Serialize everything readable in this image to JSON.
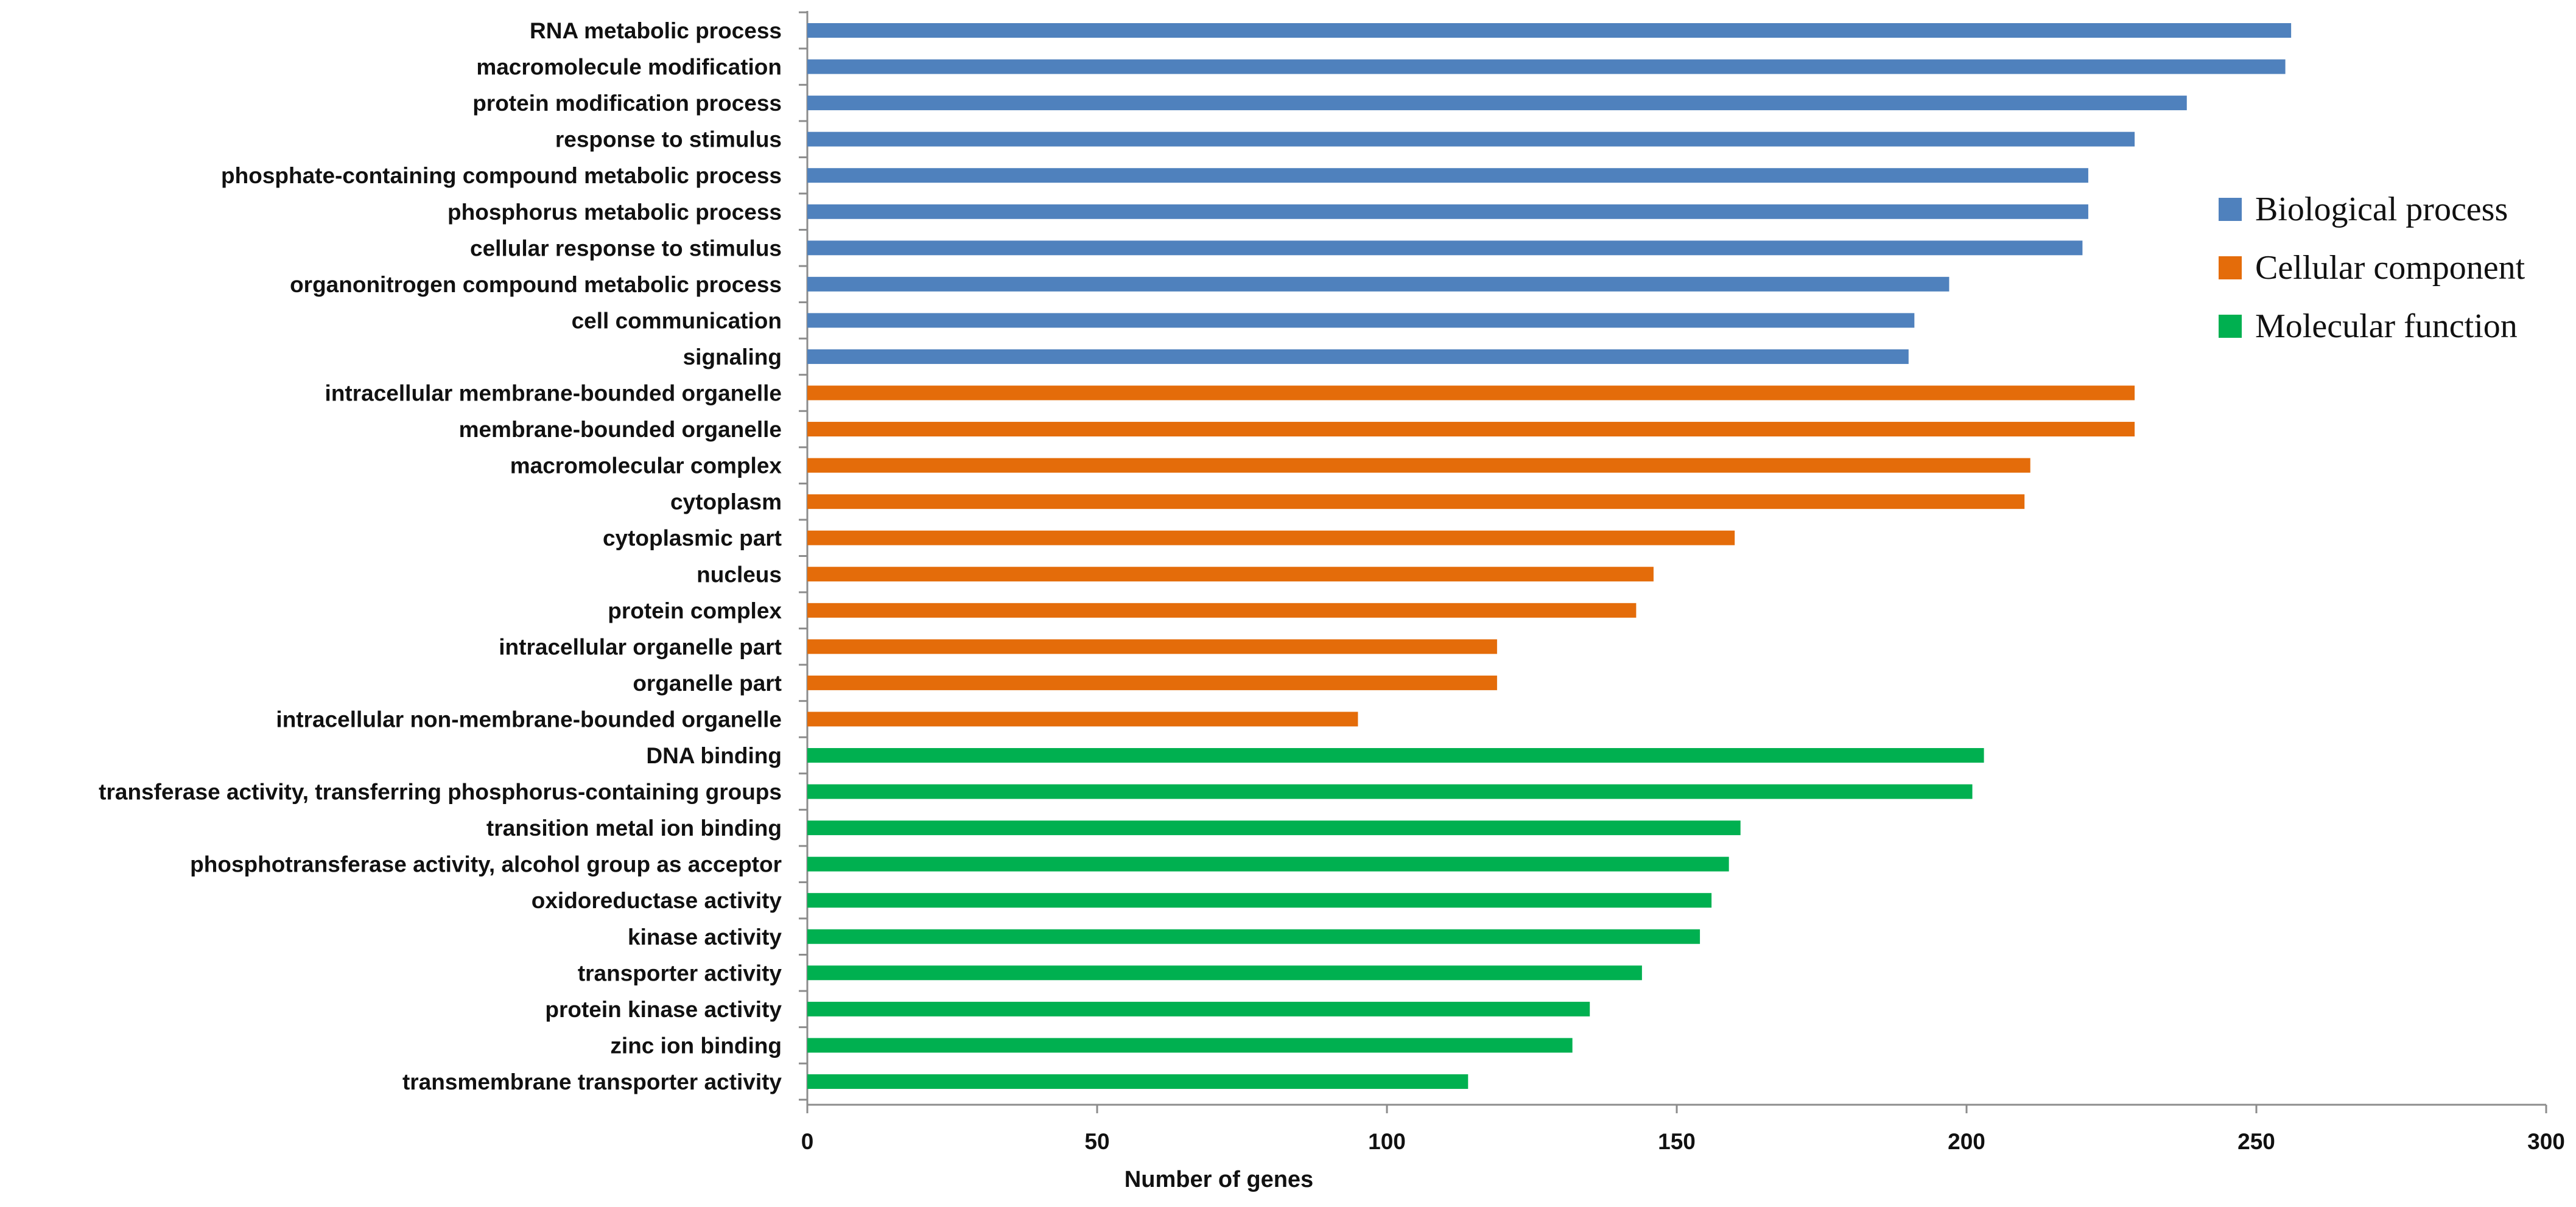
{
  "chart_data": {
    "type": "bar",
    "orientation": "horizontal",
    "title": "",
    "xlabel": "Number of genes",
    "ylabel": "",
    "xlim": [
      0,
      300
    ],
    "xticks": [
      0,
      50,
      100,
      150,
      200,
      250,
      300
    ],
    "grid": false,
    "legend_position": "right",
    "series": [
      {
        "name": "Biological process",
        "color": "#4f81bd",
        "categories": [
          "RNA metabolic process",
          "macromolecule modification",
          "protein modification process",
          "response to stimulus",
          "phosphate-containing compound metabolic process",
          "phosphorus metabolic process",
          "cellular response to stimulus",
          "organonitrogen compound metabolic process",
          "cell communication",
          "signaling"
        ],
        "values": [
          256,
          255,
          238,
          229,
          221,
          221,
          220,
          197,
          191,
          190
        ]
      },
      {
        "name": "Cellular component",
        "color": "#e46c0a",
        "categories": [
          "intracellular membrane-bounded organelle",
          "membrane-bounded organelle",
          "macromolecular complex",
          "cytoplasm",
          "cytoplasmic part",
          "nucleus",
          "protein complex",
          "intracellular organelle part",
          "organelle part",
          "intracellular non-membrane-bounded organelle"
        ],
        "values": [
          229,
          229,
          211,
          210,
          160,
          146,
          143,
          119,
          119,
          95
        ]
      },
      {
        "name": "Molecular function",
        "color": "#00b050",
        "categories": [
          "DNA binding",
          "transferase activity, transferring phosphorus-containing groups",
          "transition metal ion binding",
          "phosphotransferase activity, alcohol group as acceptor",
          "oxidoreductase activity",
          "kinase activity",
          "transporter activity",
          "protein kinase activity",
          "zinc ion binding",
          "transmembrane transporter activity"
        ],
        "values": [
          203,
          201,
          161,
          159,
          156,
          154,
          144,
          135,
          132,
          114
        ]
      }
    ]
  }
}
